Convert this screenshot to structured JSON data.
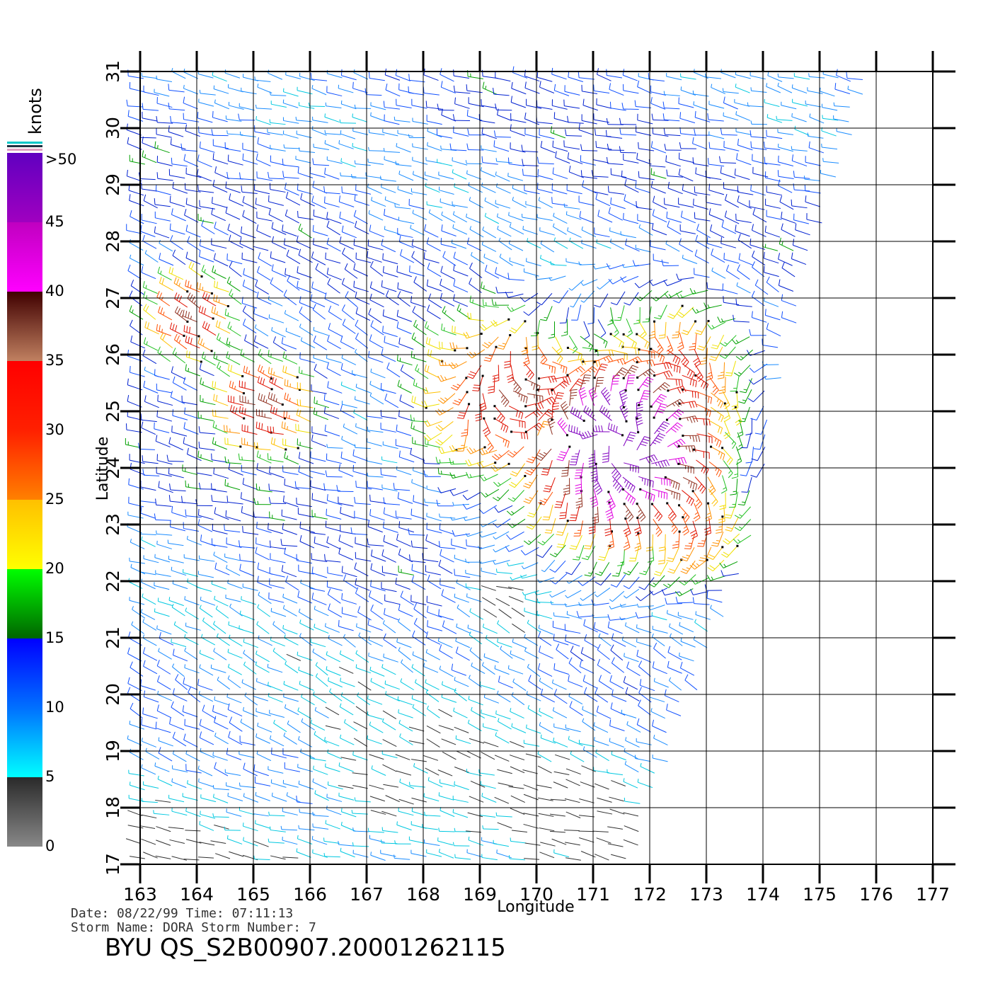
{
  "chart_data": {
    "type": "wind_barb_map",
    "xlabel": "Longitude",
    "ylabel": "Latitude",
    "xlim": [
      163,
      177
    ],
    "ylim": [
      17,
      31
    ],
    "x_ticks": [
      "163",
      "164",
      "165",
      "166",
      "167",
      "168",
      "169",
      "170",
      "171",
      "172",
      "173",
      "174",
      "175",
      "176",
      "177"
    ],
    "y_ticks": [
      "17",
      "18",
      "19",
      "20",
      "21",
      "22",
      "23",
      "24",
      "25",
      "26",
      "27",
      "28",
      "29",
      "30",
      "31"
    ],
    "grid": true,
    "swath_edge": [
      [
        175.9,
        30.9
      ],
      [
        175.5,
        29.5
      ],
      [
        174.8,
        27.5
      ],
      [
        174.4,
        26
      ],
      [
        173.9,
        23
      ],
      [
        173.6,
        22
      ],
      [
        173.2,
        21
      ],
      [
        172.8,
        20
      ],
      [
        172.4,
        19
      ],
      [
        172.0,
        18
      ],
      [
        171.7,
        17
      ]
    ],
    "wind_field": {
      "storm_centers": [
        {
          "lon": 171.5,
          "lat": 24.4,
          "speed": 45,
          "radius": 1.5
        },
        {
          "lon": 172.4,
          "lat": 25.7,
          "speed": 25,
          "radius": 1.3
        },
        {
          "lon": 169.5,
          "lat": 25.3,
          "speed": 28,
          "radius": 1.4
        },
        {
          "lon": 165.3,
          "lat": 25.0,
          "speed": 30,
          "radius": 0.8
        },
        {
          "lon": 164.0,
          "lat": 26.6,
          "speed": 30,
          "radius": 0.7
        },
        {
          "lon": 172.8,
          "lat": 23.0,
          "speed": 22,
          "radius": 1.0
        }
      ],
      "calm_centers": [
        {
          "lon": 169.6,
          "lat": 21.5,
          "speed": 3
        },
        {
          "lon": 167.4,
          "lat": 18.5,
          "speed": 4
        }
      ]
    },
    "colorbar": {
      "title": "knots",
      "labels": [
        ">50",
        "45",
        "40",
        "35",
        "30",
        "25",
        "20",
        "15",
        "10",
        "5",
        "0"
      ],
      "bands": [
        {
          "from": 0,
          "to": 5,
          "colors": [
            "#888888",
            "#2a2a2a"
          ]
        },
        {
          "from": 5,
          "to": 10,
          "colors": [
            "#00ffff",
            "#0070ff"
          ]
        },
        {
          "from": 10,
          "to": 15,
          "colors": [
            "#0070ff",
            "#0000ff"
          ]
        },
        {
          "from": 15,
          "to": 20,
          "colors": [
            "#006400",
            "#00ff00"
          ]
        },
        {
          "from": 20,
          "to": 25,
          "colors": [
            "#ffff00",
            "#ffc000"
          ]
        },
        {
          "from": 25,
          "to": 30,
          "colors": [
            "#ff8000",
            "#ff2000"
          ]
        },
        {
          "from": 30,
          "to": 35,
          "colors": [
            "#ff2000",
            "#ff0000"
          ]
        },
        {
          "from": 35,
          "to": 40,
          "colors": [
            "#c08060",
            "#400000"
          ]
        },
        {
          "from": 40,
          "to": 45,
          "colors": [
            "#ff00ff",
            "#c000c0"
          ]
        },
        {
          "from": 45,
          "to": 50,
          "colors": [
            "#a000c0",
            "#6000c0"
          ]
        }
      ]
    }
  },
  "footer": {
    "date_line": "Date: 08/22/99   Time: 07:11:13",
    "storm_line": "Storm Name: DORA   Storm Number: 7",
    "title": "BYU QS_S2B00907.20001262115"
  }
}
